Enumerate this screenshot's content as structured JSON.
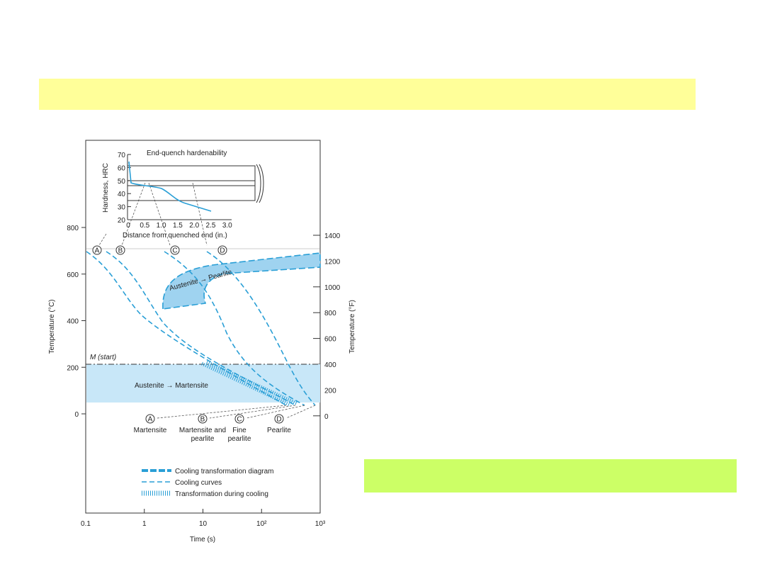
{
  "inset": {
    "title": "End-quench hardenability",
    "y_label": "Hardness, HRC",
    "x_label": "Distance from quenched end (in.)",
    "y_ticks": [
      "70",
      "60",
      "50",
      "40",
      "30",
      "20"
    ],
    "x_ticks": [
      "0",
      "0.5",
      "1.0",
      "1.5",
      "2.0",
      "2.5",
      "3.0"
    ]
  },
  "main": {
    "y_label": "Temperature (°C)",
    "y2_label": "Temperature (°F)",
    "x_label": "Time (s)",
    "y_ticks": [
      "800",
      "600",
      "400",
      "200",
      "0"
    ],
    "y2_ticks": [
      "1400",
      "1200",
      "1000",
      "800",
      "600",
      "400",
      "200",
      "0"
    ],
    "x_ticks": [
      "0.1",
      "1",
      "10",
      "10²",
      "10³"
    ],
    "m_start": "M (start)"
  },
  "regions": [
    "Austenite → Pearlite",
    "Austenite → Martensite"
  ],
  "curve_labels": [
    "A",
    "B",
    "C",
    "D"
  ],
  "products": [
    [
      "Martensite"
    ],
    [
      "Martensite and",
      "pearlite"
    ],
    [
      "Fine",
      "pearlite"
    ],
    [
      "Pearlite"
    ]
  ],
  "legend": [
    "Cooling transformation diagram",
    "Cooling curves",
    "Transformation during cooling"
  ]
}
